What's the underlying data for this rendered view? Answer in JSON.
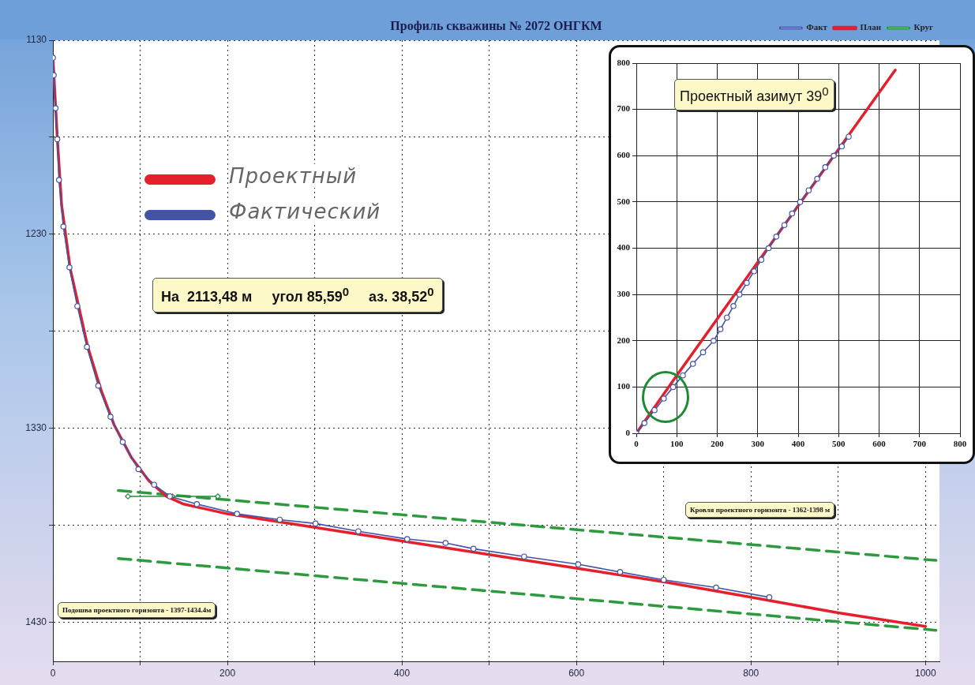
{
  "chart_data": [
    {
      "type": "line",
      "title": "Профиль скважины № 2072 ОНГКМ",
      "legend": "top right",
      "grid": true,
      "xlim": [
        0,
        1016
      ],
      "xticks": [
        0,
        {
          "value": 100,
          "label": null
        },
        200,
        {
          "value": 300,
          "label": null
        },
        400,
        {
          "value": 500,
          "label": null
        },
        600,
        {
          "value": 700,
          "label": null
        },
        800,
        {
          "value": 900,
          "label": null
        },
        1000
      ],
      "ylim": [
        1450,
        1130
      ],
      "yticks": [
        1130,
        {
          "value": 1180,
          "label": null
        },
        1230,
        {
          "value": 1280,
          "label": null
        },
        1330,
        {
          "value": 1380,
          "label": null
        },
        1430
      ],
      "series": [
        {
          "name": "Факт",
          "color": "#4453a8",
          "marker": "circle",
          "line_style": "solid",
          "x": [
            0,
            1,
            3,
            5,
            7,
            12,
            19,
            28,
            39,
            52,
            66,
            80,
            98,
            116,
            134,
            165,
            211,
            260,
            301,
            350,
            406,
            450,
            482,
            540,
            602,
            650,
            700,
            760,
            821
          ],
          "values": [
            1139,
            1148,
            1165,
            1181,
            1202,
            1226,
            1247,
            1267,
            1288,
            1308,
            1324,
            1337,
            1351,
            1359,
            1365,
            1369,
            1374,
            1377,
            1379,
            1383,
            1387,
            1389,
            1392,
            1396,
            1400,
            1404,
            1408,
            1412,
            1417
          ]
        },
        {
          "name": "План",
          "color": "#e3202b",
          "marker": "none",
          "line_style": "solid",
          "x": [
            0,
            2,
            5,
            10,
            20,
            30,
            40,
            55,
            70,
            90,
            110,
            130,
            150,
            200,
            300,
            400,
            500,
            600,
            700,
            800,
            900,
            1000
          ],
          "values": [
            1138,
            1155,
            1180,
            1215,
            1248,
            1268,
            1288,
            1310,
            1328,
            1345,
            1357,
            1365,
            1369,
            1374,
            1381,
            1388,
            1395,
            1402,
            1409,
            1417,
            1425,
            1432
          ]
        },
        {
          "name": "Круг",
          "color": "#2a8a3a",
          "marker": "diamond",
          "line_style": "solid",
          "x": [
            86,
            137,
            189
          ],
          "values": [
            1365,
            1365,
            1365
          ]
        },
        {
          "color": "#2e9a3e",
          "marker": "none",
          "line_style": "dashed",
          "x": [
            75,
            1012
          ],
          "values": [
            1362,
            1398
          ]
        },
        {
          "color": "#2e9a3e",
          "marker": "none",
          "line_style": "dashed",
          "x": [
            75,
            1012
          ],
          "values": [
            1397,
            1434
          ]
        }
      ],
      "annotations": [
        "Проектный",
        "Фактический",
        "На  2113,48 м     угол 85,59$^{0}$     аз. 38,52$^{0}$",
        "Кровля проектного горизонта - 1362-1398 м",
        "Подошва проектного горизонта - 1397-1434.4м"
      ]
    },
    {
      "type": "line",
      "grid": true,
      "xlim": [
        0,
        800
      ],
      "xticks": [
        0,
        100,
        200,
        300,
        400,
        500,
        600,
        700,
        800
      ],
      "ylim": [
        0,
        800
      ],
      "yticks": [
        0,
        100,
        200,
        300,
        400,
        500,
        600,
        700,
        800
      ],
      "series": [
        {
          "color": "#4453a8",
          "marker": "circle",
          "line_style": "solid",
          "x": [
            0,
            20,
            45,
            68,
            91,
            115,
            140,
            165,
            191,
            208,
            224,
            240,
            255,
            273,
            291,
            309,
            327,
            346,
            366,
            385,
            405,
            426,
            447,
            467,
            488,
            508,
            525
          ],
          "values": [
            0,
            22,
            50,
            75,
            100,
            125,
            150,
            175,
            200,
            225,
            250,
            275,
            300,
            325,
            350,
            375,
            400,
            425,
            450,
            475,
            500,
            525,
            550,
            575,
            600,
            620,
            641
          ]
        },
        {
          "color": "#e3202b",
          "marker": "none",
          "line_style": "solid",
          "x": [
            0,
            100,
            640
          ],
          "values": [
            0,
            125,
            785
          ]
        }
      ],
      "annotations": [
        "Проектный азимут 39$^{0}$"
      ]
    }
  ]
}
